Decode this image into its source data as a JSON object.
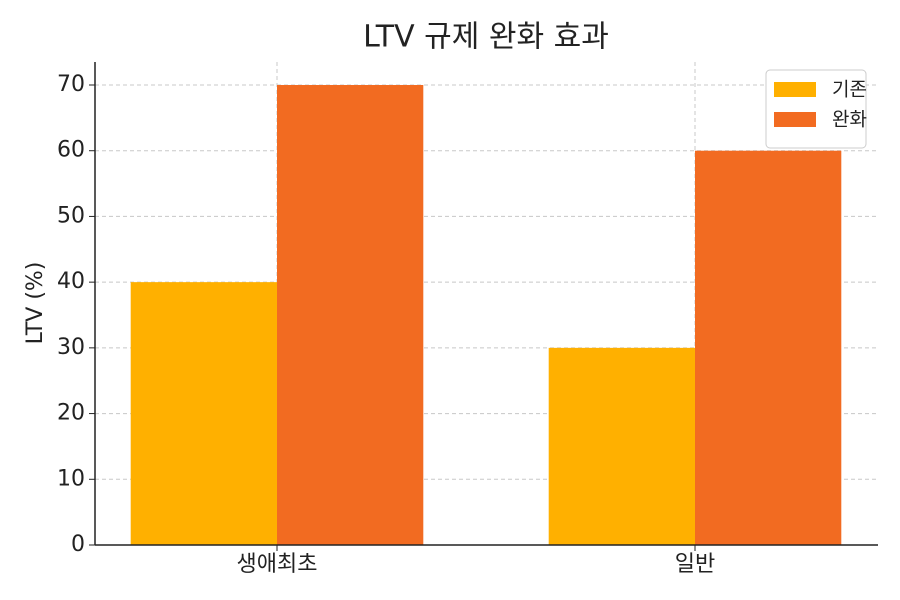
{
  "chart_data": {
    "type": "bar",
    "title": "LTV 규제 완화 효과",
    "y_label": "LTV (%)",
    "categories": [
      "생애최초",
      "일반"
    ],
    "series": [
      {
        "name": "기존",
        "color": "#ffb000",
        "values": [
          40,
          30
        ]
      },
      {
        "name": "완화",
        "color": "#f26b21",
        "values": [
          70,
          60
        ]
      }
    ],
    "ylim": [
      0,
      73.5
    ],
    "yticks": [
      0,
      10,
      20,
      30,
      40,
      50,
      60,
      70
    ],
    "grid": true,
    "legend": "upper right"
  }
}
